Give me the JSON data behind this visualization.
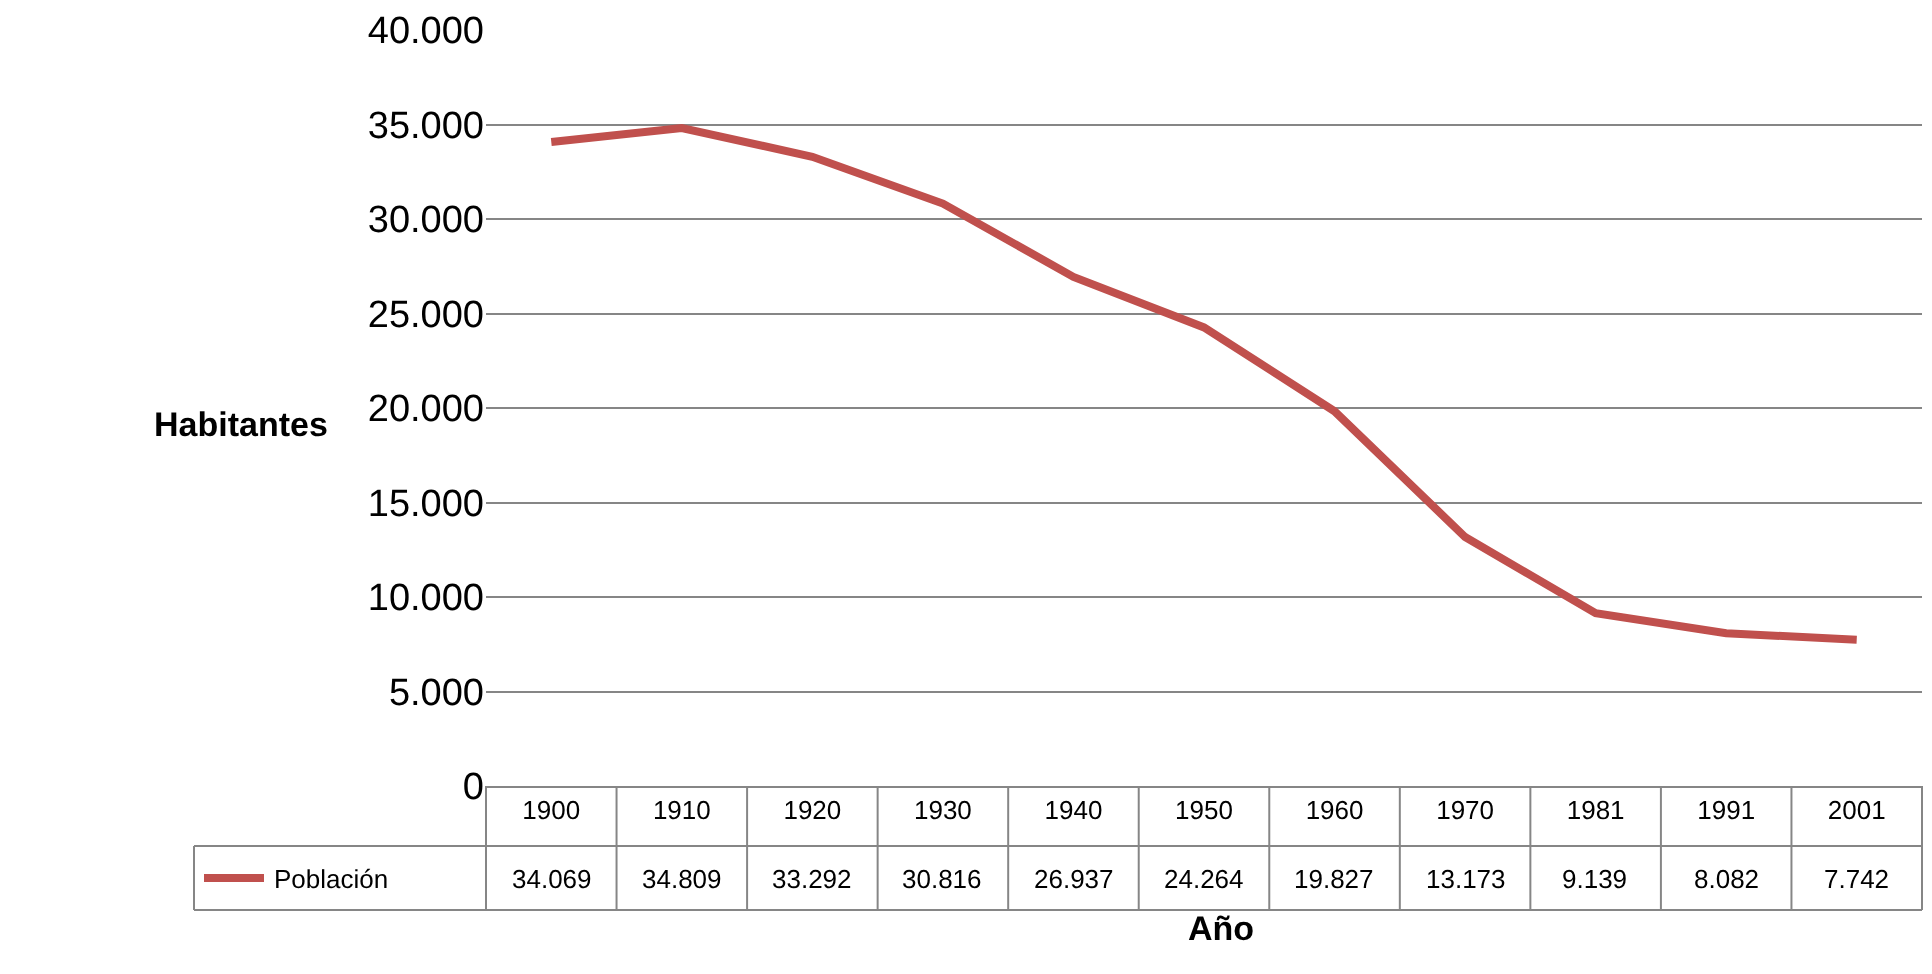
{
  "chart_data": {
    "type": "line",
    "xlabel": "Año",
    "ylabel": "Habitantes",
    "categories": [
      "1900",
      "1910",
      "1920",
      "1930",
      "1940",
      "1950",
      "1960",
      "1970",
      "1981",
      "1991",
      "2001"
    ],
    "series": [
      {
        "name": "Población",
        "color": "#c0504d",
        "values": [
          34069,
          34809,
          33292,
          30816,
          26937,
          24264,
          19827,
          13173,
          9139,
          8082,
          7742
        ]
      }
    ],
    "value_labels": [
      "34.069",
      "34.809",
      "33.292",
      "30.816",
      "26.937",
      "24.264",
      "19.827",
      "13.173",
      "9.139",
      "8.082",
      "7.742"
    ],
    "ylim": [
      0,
      40000
    ],
    "yticks": [
      0,
      {
        "value": 5000,
        "label": "5.000"
      },
      {
        "value": 10000,
        "label": "10.000"
      },
      {
        "value": 15000,
        "label": "15.000"
      },
      {
        "value": 20000,
        "label": "20.000"
      },
      {
        "value": 25000,
        "label": "25.000"
      },
      {
        "value": 30000,
        "label": "30.000"
      },
      {
        "value": 35000,
        "label": "35.000"
      },
      {
        "value": 40000,
        "label": "40.000"
      }
    ],
    "grid": "y",
    "legend": "bottom left",
    "marker": "none",
    "line_style": "solid"
  }
}
